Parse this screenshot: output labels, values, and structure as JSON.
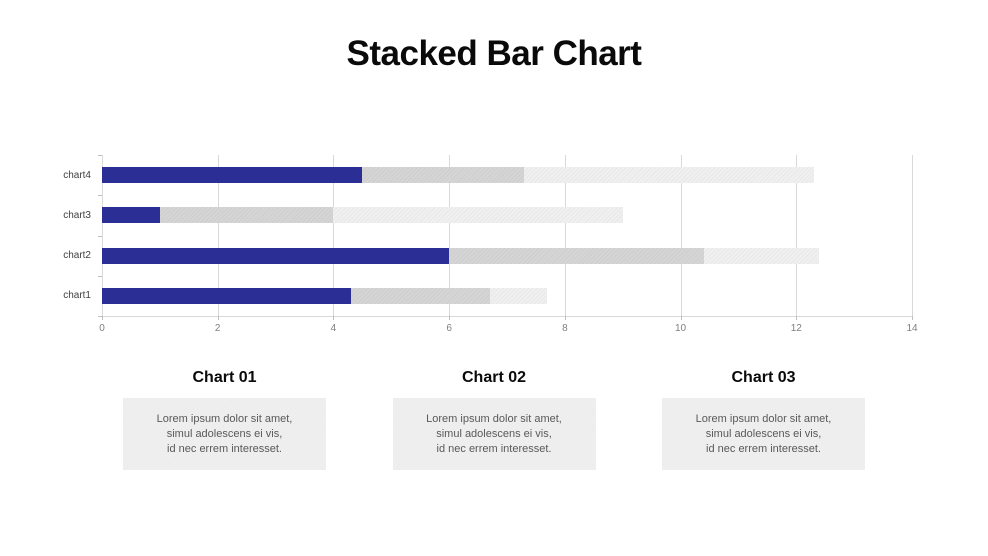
{
  "slide": {
    "title": "Stacked Bar Chart"
  },
  "chart_data": {
    "type": "bar",
    "orientation": "horizontal",
    "stacked": true,
    "title": "Stacked Bar Chart",
    "categories": [
      "chart4",
      "chart3",
      "chart2",
      "chart1"
    ],
    "category_order": "top-to-bottom",
    "series": [
      {
        "name": "segment-1",
        "color": "#2b2e94",
        "values": [
          4.5,
          1.0,
          6.0,
          4.3
        ]
      },
      {
        "name": "segment-2",
        "color": "#d5d5d5",
        "values": [
          2.8,
          3.0,
          4.4,
          2.4
        ]
      },
      {
        "name": "segment-3",
        "color": "#f0f0f0",
        "values": [
          5.0,
          5.0,
          2.0,
          1.0
        ]
      }
    ],
    "totals": [
      12.3,
      9.0,
      12.4,
      7.7
    ],
    "xlabel": "",
    "ylabel": "",
    "xlim": [
      0,
      14
    ],
    "x_ticks": [
      0,
      2,
      4,
      6,
      8,
      10,
      12,
      14
    ],
    "grid": true,
    "legend": false
  },
  "cards": [
    {
      "heading": "Chart 01",
      "lines": [
        "Lorem ipsum dolor sit amet,",
        "simul adolescens ei vis,",
        "id nec errem interesset."
      ]
    },
    {
      "heading": "Chart 02",
      "lines": [
        "Lorem ipsum dolor sit amet,",
        "simul adolescens ei vis,",
        "id nec errem interesset."
      ]
    },
    {
      "heading": "Chart 03",
      "lines": [
        "Lorem ipsum dolor sit amet,",
        "simul adolescens ei vis,",
        "id nec errem interesset."
      ]
    }
  ],
  "colors": {
    "bar_primary": "#2b2e94",
    "bar_secondary": "#d5d5d5",
    "bar_tertiary": "#f0f0f0",
    "gridline": "#d9d9d9",
    "tick_label": "#7f7f7f",
    "category_label": "#404040",
    "card_background": "#efefef",
    "card_text": "#595959",
    "title_text": "#0a0a0a"
  }
}
